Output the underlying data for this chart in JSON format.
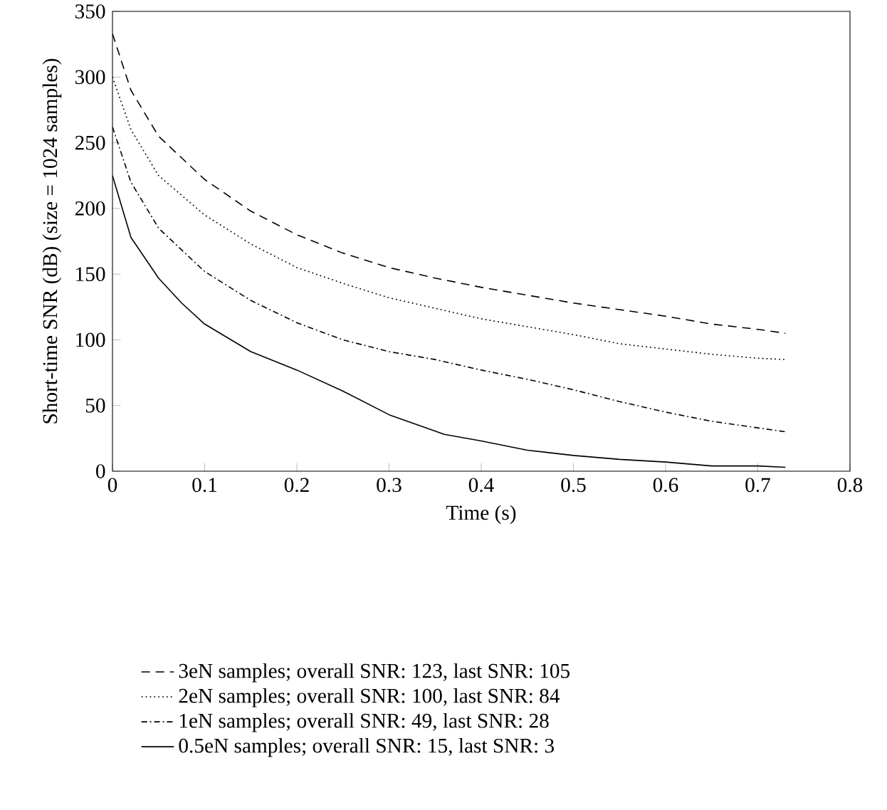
{
  "chart_data": {
    "type": "line",
    "xlabel": "Time (s)",
    "ylabel": "Short-time SNR (dB) (size = 1024 samples)",
    "xlim": [
      0,
      0.8
    ],
    "xticks": [
      0,
      0.1,
      0.2,
      0.3,
      0.4,
      0.5,
      0.6,
      0.7,
      0.8
    ],
    "ylim": [
      0,
      350
    ],
    "yticks": [
      0,
      50,
      100,
      150,
      200,
      250,
      300,
      350
    ],
    "legend": "bottom",
    "grid": false,
    "marker": "none",
    "series": [
      {
        "name": "3eN samples; overall SNR: 123, last SNR: 105",
        "color": "#000000",
        "line_style": "dashed",
        "x": [
          0,
          0.02,
          0.05,
          0.1,
          0.15,
          0.2,
          0.25,
          0.3,
          0.35,
          0.4,
          0.45,
          0.5,
          0.55,
          0.6,
          0.65,
          0.7,
          0.73
        ],
        "values": [
          333,
          290,
          255,
          222,
          198,
          180,
          166,
          155,
          147,
          140,
          134,
          128,
          123,
          118,
          112,
          108,
          105
        ]
      },
      {
        "name": "2eN samples; overall SNR: 100, last SNR: 84",
        "color": "#000000",
        "line_style": "dotted",
        "x": [
          0,
          0.02,
          0.05,
          0.1,
          0.15,
          0.2,
          0.25,
          0.3,
          0.35,
          0.4,
          0.45,
          0.5,
          0.55,
          0.6,
          0.65,
          0.7,
          0.73
        ],
        "values": [
          300,
          260,
          225,
          195,
          173,
          155,
          143,
          132,
          124,
          116,
          110,
          104,
          97,
          93,
          89,
          86,
          85
        ]
      },
      {
        "name": "1eN samples; overall SNR: 49, last SNR: 28",
        "color": "#000000",
        "line_style": "dashdot",
        "x": [
          0,
          0.02,
          0.05,
          0.1,
          0.15,
          0.2,
          0.25,
          0.3,
          0.35,
          0.4,
          0.45,
          0.5,
          0.55,
          0.6,
          0.65,
          0.7,
          0.73
        ],
        "values": [
          262,
          220,
          185,
          152,
          130,
          113,
          100,
          91,
          85,
          77,
          70,
          62,
          53,
          45,
          38,
          33,
          30
        ]
      },
      {
        "name": "0.5eN samples; overall SNR: 15, last SNR: 3",
        "color": "#000000",
        "line_style": "solid",
        "x": [
          0,
          0.02,
          0.05,
          0.075,
          0.1,
          0.15,
          0.2,
          0.25,
          0.3,
          0.36,
          0.4,
          0.45,
          0.5,
          0.55,
          0.6,
          0.65,
          0.7,
          0.73
        ],
        "values": [
          225,
          178,
          147,
          128,
          112,
          91,
          77,
          61,
          43,
          28,
          23,
          16,
          12,
          9,
          7,
          4,
          4,
          3
        ]
      }
    ]
  }
}
